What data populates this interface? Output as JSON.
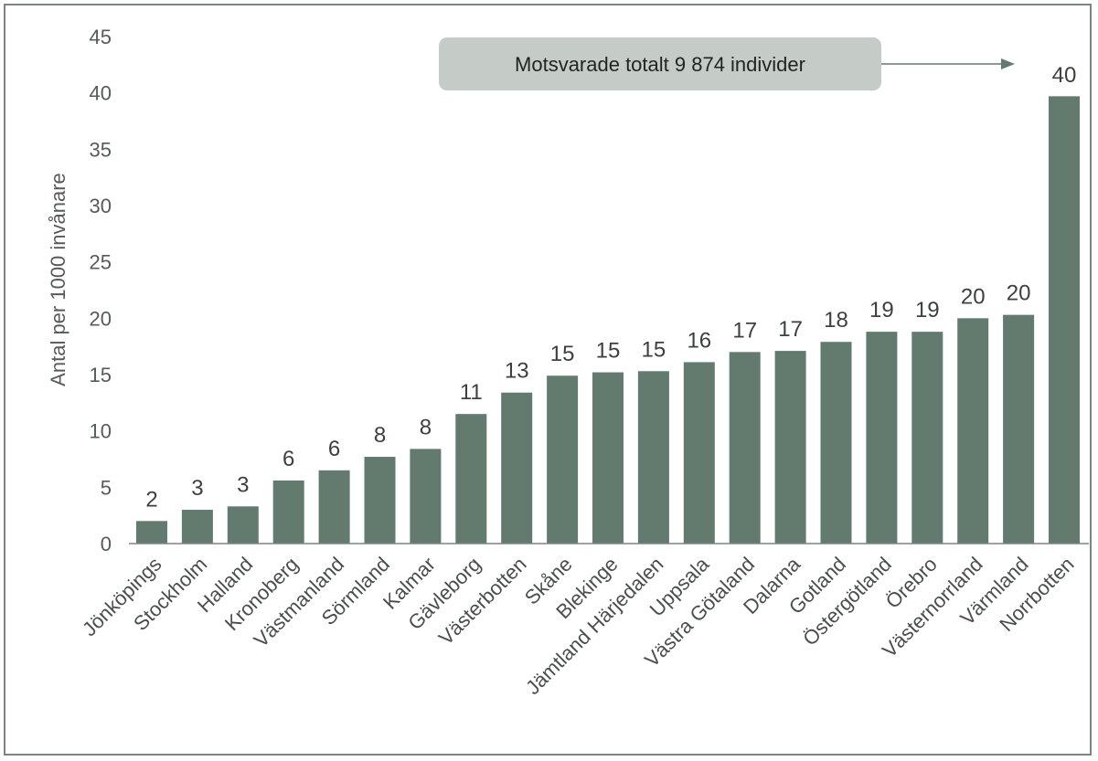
{
  "chart_data": {
    "type": "bar",
    "title": "",
    "xlabel": "",
    "ylabel": "Antal per 1000 invånare",
    "ylim": [
      0,
      45
    ],
    "yticks": [
      0,
      5,
      10,
      15,
      20,
      25,
      30,
      35,
      40,
      45
    ],
    "grid": false,
    "categories": [
      "Jönköpings",
      "Stockholm",
      "Halland",
      "Kronoberg",
      "Västmanland",
      "Sörmland",
      "Kalmar",
      "Gävleborg",
      "Västerbotten",
      "Skåne",
      "Blekinge",
      "Jämtland Härjedalen",
      "Uppsala",
      "Västra Götaland",
      "Dalarna",
      "Gotland",
      "Östergötland",
      "Örebro",
      "Västernorrland",
      "Värmland",
      "Norrbotten"
    ],
    "values": [
      2.0,
      3.0,
      3.3,
      5.6,
      6.5,
      7.7,
      8.4,
      11.5,
      13.4,
      14.9,
      15.2,
      15.3,
      16.1,
      17.0,
      17.1,
      17.9,
      18.8,
      18.8,
      20.0,
      20.3,
      39.7
    ],
    "labels": [
      "2",
      "3",
      "3",
      "6",
      "6",
      "8",
      "8",
      "11",
      "13",
      "15",
      "15",
      "15",
      "16",
      "17",
      "17",
      "18",
      "19",
      "19",
      "20",
      "20",
      "40"
    ],
    "annotation": {
      "text": "Motsvarade totalt 9 874 individer",
      "points_to": "Norrbotten"
    },
    "colors": {
      "bar": "#637a6f",
      "axis": "#555b58",
      "annotation_box": "#c5ccc7",
      "arrow": "#637a6f"
    }
  }
}
